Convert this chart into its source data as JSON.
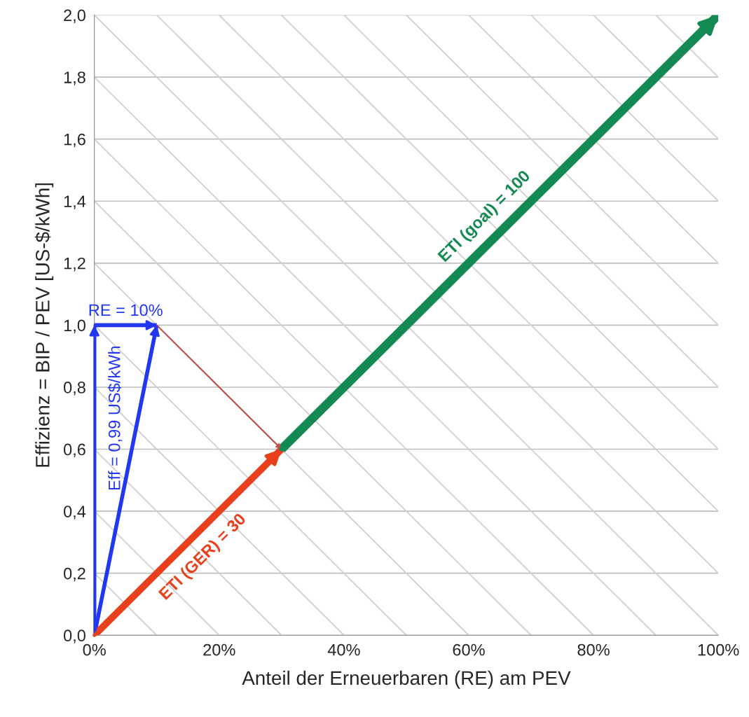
{
  "chart_data": {
    "type": "line",
    "xlabel": "Anteil der Erneuerbaren (RE) am PEV",
    "ylabel": "Effizienz = BIP / PEV [US-$/kWh]",
    "xlim": [
      0,
      100
    ],
    "ylim": [
      0,
      2.0
    ],
    "xticks": [
      {
        "value": 0,
        "label": "0%"
      },
      {
        "value": 20,
        "label": "20%"
      },
      {
        "value": 40,
        "label": "40%"
      },
      {
        "value": 60,
        "label": "60%"
      },
      {
        "value": 80,
        "label": "80%"
      },
      {
        "value": 100,
        "label": "100%"
      }
    ],
    "yticks": [
      {
        "value": 0,
        "label": "0,0"
      },
      {
        "value": 0.2,
        "label": "0,2"
      },
      {
        "value": 0.4,
        "label": "0,4"
      },
      {
        "value": 0.6,
        "label": "0,6"
      },
      {
        "value": 0.8,
        "label": "0,8"
      },
      {
        "value": 1.0,
        "label": "1,0"
      },
      {
        "value": 1.2,
        "label": "1,2"
      },
      {
        "value": 1.4,
        "label": "1,4"
      },
      {
        "value": 1.6,
        "label": "1,6"
      },
      {
        "value": 1.8,
        "label": "1,8"
      },
      {
        "value": 2.0,
        "label": "2,0"
      }
    ],
    "grid": "y",
    "series": [
      {
        "color": "#d0d0d0",
        "x": [
          0,
          10
        ],
        "values": [
          0.2,
          0
        ]
      },
      {
        "color": "#d0d0d0",
        "x": [
          0,
          20
        ],
        "values": [
          0.4,
          0
        ]
      },
      {
        "color": "#d0d0d0",
        "x": [
          0,
          30
        ],
        "values": [
          0.6,
          0
        ]
      },
      {
        "color": "#d0d0d0",
        "x": [
          0,
          40
        ],
        "values": [
          0.8,
          0
        ]
      },
      {
        "color": "#d0d0d0",
        "x": [
          0,
          50
        ],
        "values": [
          1.0,
          0
        ]
      },
      {
        "color": "#d0d0d0",
        "x": [
          0,
          60
        ],
        "values": [
          1.2,
          0
        ]
      },
      {
        "color": "#d0d0d0",
        "x": [
          0,
          70
        ],
        "values": [
          1.4,
          0
        ]
      },
      {
        "color": "#d0d0d0",
        "x": [
          0,
          80
        ],
        "values": [
          1.6,
          0
        ]
      },
      {
        "color": "#d0d0d0",
        "x": [
          0,
          90
        ],
        "values": [
          1.8,
          0
        ]
      },
      {
        "color": "#d0d0d0",
        "x": [
          0,
          100
        ],
        "values": [
          2.0,
          0
        ]
      },
      {
        "color": "#d0d0d0",
        "x": [
          10,
          100
        ],
        "values": [
          2.0,
          0.2
        ]
      },
      {
        "color": "#d0d0d0",
        "x": [
          20,
          100
        ],
        "values": [
          2.0,
          0.4
        ]
      },
      {
        "color": "#d0d0d0",
        "x": [
          30,
          100
        ],
        "values": [
          2.0,
          0.6
        ]
      },
      {
        "color": "#d0d0d0",
        "x": [
          40,
          100
        ],
        "values": [
          2.0,
          0.8
        ]
      },
      {
        "color": "#d0d0d0",
        "x": [
          50,
          100
        ],
        "values": [
          2.0,
          1.0
        ]
      },
      {
        "color": "#d0d0d0",
        "x": [
          60,
          100
        ],
        "values": [
          2.0,
          1.2
        ]
      },
      {
        "color": "#d0d0d0",
        "x": [
          70,
          100
        ],
        "values": [
          2.0,
          1.4
        ]
      },
      {
        "color": "#d0d0d0",
        "x": [
          80,
          100
        ],
        "values": [
          2.0,
          1.6
        ]
      },
      {
        "color": "#d0d0d0",
        "x": [
          90,
          100
        ],
        "values": [
          2.0,
          1.8
        ]
      },
      {
        "color": "#c0504d",
        "x": [
          10,
          30
        ],
        "values": [
          1.0,
          0.6
        ]
      },
      {
        "color": "#2238f0",
        "x": [
          0,
          0
        ],
        "values": [
          0,
          1.0
        ]
      },
      {
        "color": "#2238f0",
        "x": [
          0,
          10
        ],
        "values": [
          1.0,
          1.0
        ]
      },
      {
        "color": "#2238f0",
        "x": [
          0,
          10
        ],
        "values": [
          0,
          1.0
        ]
      },
      {
        "color": "#e8401c",
        "x": [
          0,
          30
        ],
        "values": [
          0,
          0.6
        ]
      },
      {
        "color": "#138a52",
        "x": [
          30,
          100
        ],
        "values": [
          0.6,
          2.0
        ]
      }
    ],
    "annotations": [
      {
        "text": "RE = 10%",
        "x": 5,
        "y": 1.0
      },
      {
        "text": "Eff = 0,99 US$/kWh",
        "x": 0,
        "y": 0.7
      },
      {
        "text": "ETI (GER) = 30",
        "x": 15,
        "y": 0.3
      },
      {
        "text": "ETI (goal) = 100",
        "x": 65,
        "y": 1.3
      }
    ]
  }
}
